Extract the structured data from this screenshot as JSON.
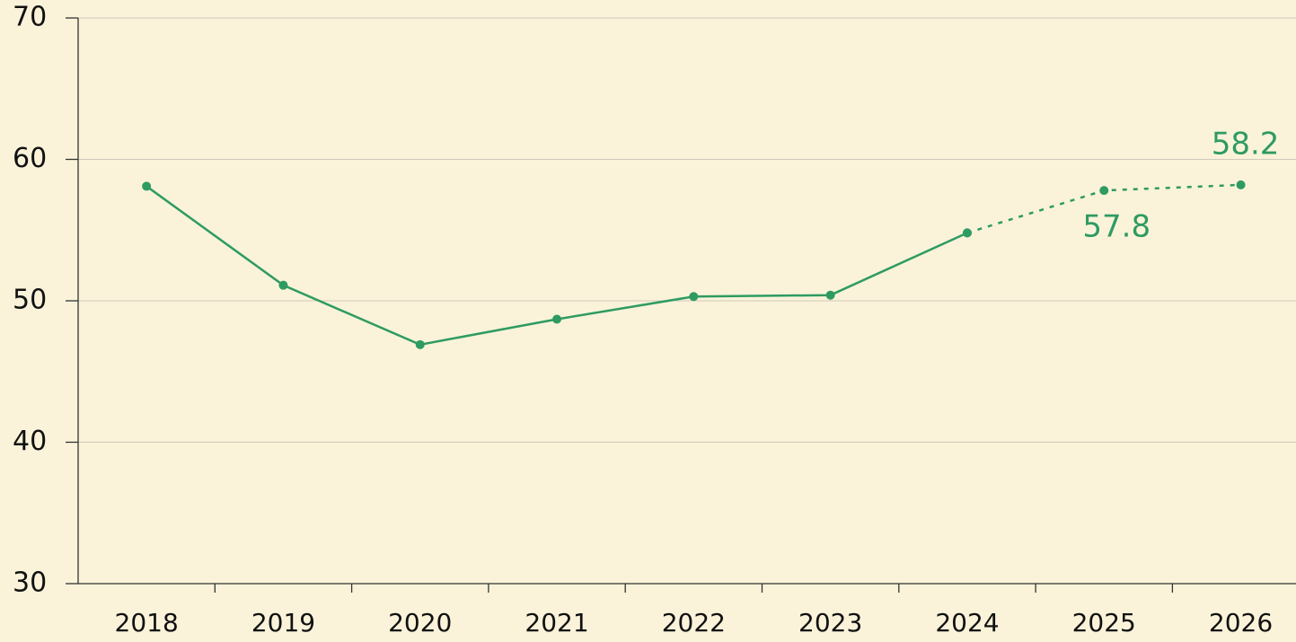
{
  "chart_data": {
    "type": "line",
    "categories": [
      "2018",
      "2019",
      "2020",
      "2021",
      "2022",
      "2023",
      "2024",
      "2025",
      "2026"
    ],
    "series": [
      {
        "color": "#2e9b62",
        "style": "solid",
        "values": [
          58.1,
          51.1,
          46.9,
          48.7,
          50.3,
          50.4,
          54.8,
          null,
          null
        ]
      },
      {
        "color": "#2e9b62",
        "style": "dotted",
        "values": [
          null,
          null,
          null,
          null,
          null,
          null,
          54.8,
          57.8,
          58.2
        ],
        "value_labels": [
          null,
          null,
          null,
          null,
          null,
          null,
          null,
          "57.8",
          "58.2"
        ]
      }
    ],
    "ylim": [
      30,
      70
    ],
    "yticks": [
      30,
      40,
      50,
      60,
      70
    ],
    "grid": true
  }
}
